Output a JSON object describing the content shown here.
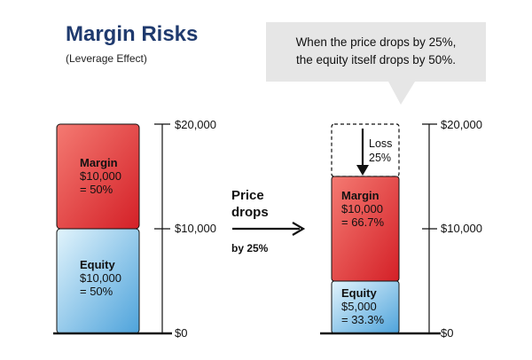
{
  "title": "Margin Risks",
  "subtitle": "(Leverage Effect)",
  "callout": {
    "line1": "When the price drops by 25%,",
    "line2": "the equity itself drops by 50%."
  },
  "arrow": {
    "line1": "Price",
    "line2": "drops",
    "line3": "by 25%"
  },
  "before": {
    "margin": {
      "label": "Margin",
      "amount": "$10,000",
      "pct": "= 50%",
      "value": 10000
    },
    "equity": {
      "label": "Equity",
      "amount": "$10,000",
      "pct": "= 50%",
      "value": 10000
    }
  },
  "after": {
    "loss": {
      "label": "Loss",
      "pct": "25%",
      "value": 5000
    },
    "margin": {
      "label": "Margin",
      "amount": "$10,000",
      "pct": "= 66.7%",
      "value": 10000
    },
    "equity": {
      "label": "Equity",
      "amount": "$5,000",
      "pct": "= 33.3%",
      "value": 5000
    }
  },
  "axis": {
    "min": 0,
    "max": 20000,
    "ticks": [
      {
        "value": 20000,
        "label": "$20,000"
      },
      {
        "value": 10000,
        "label": "$10,000"
      },
      {
        "value": 0,
        "label": "$0"
      }
    ]
  },
  "colors": {
    "title": "#1f3a6e",
    "margin_top": "#f26b63",
    "margin_bottom": "#d9232b",
    "equity_top": "#d8f0fb",
    "equity_bottom": "#56a9dd",
    "callout_bg": "#e6e6e6"
  }
}
